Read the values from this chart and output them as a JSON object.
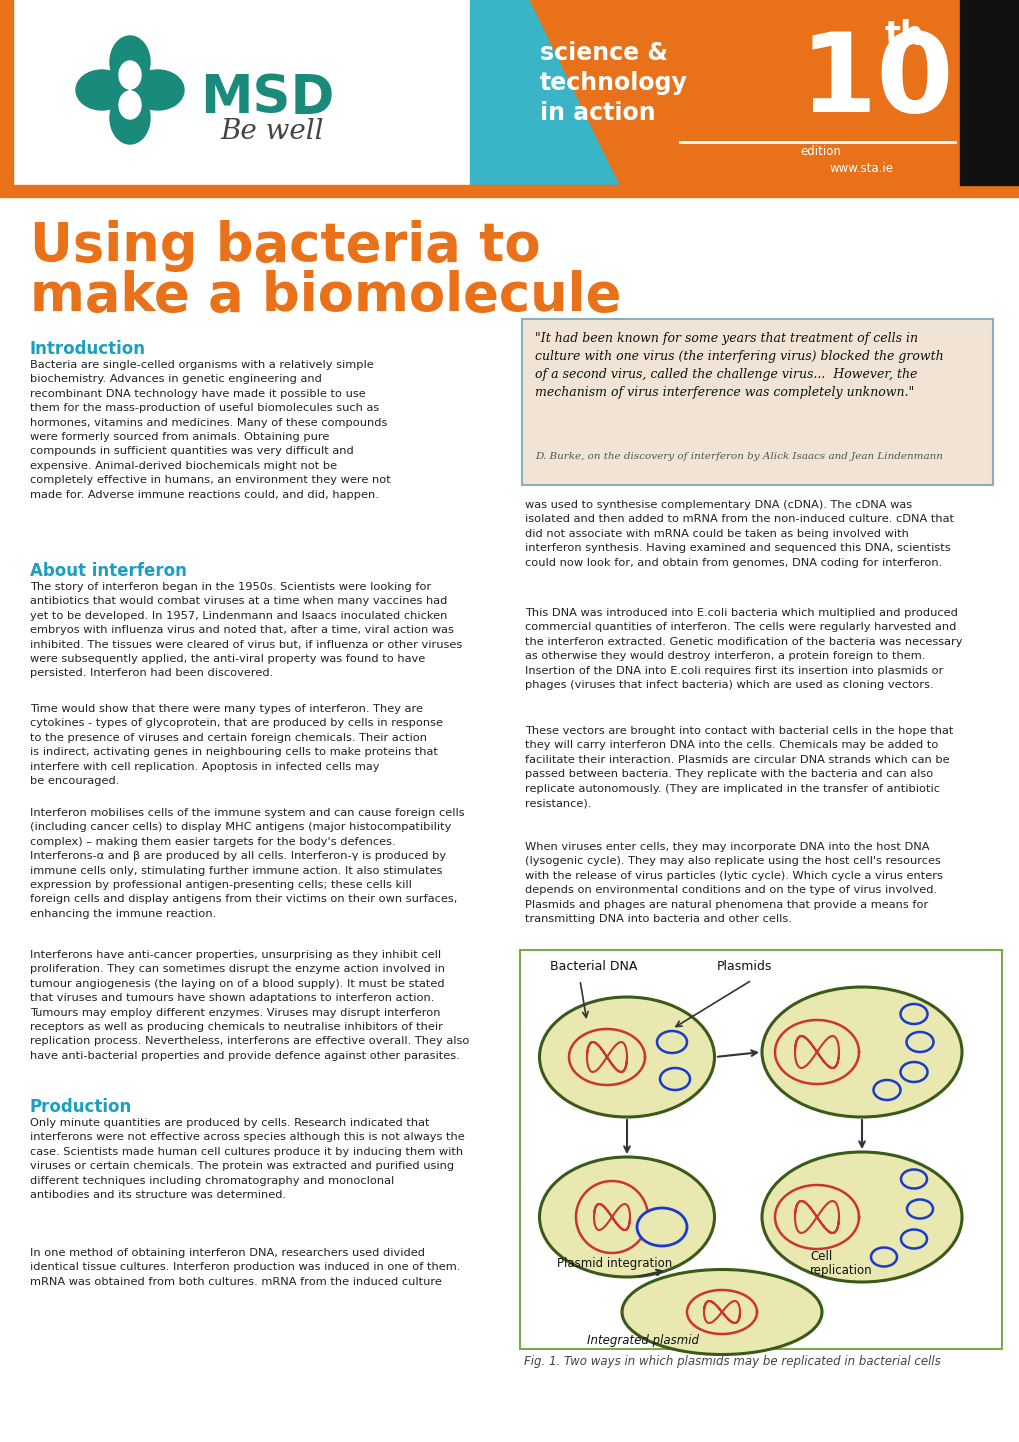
{
  "page_width": 10.2,
  "page_height": 14.42,
  "dpi": 100,
  "orange": "#e8711a",
  "teal": "#1a9fc0",
  "dark": "#111111",
  "white": "#ffffff",
  "body_dark": "#222222",
  "section_teal": "#1a9fc0",
  "title_orange": "#e8711a",
  "quote_bg": "#f2e4d4",
  "quote_border": "#8ab0bc",
  "fig_bg": "#f0f0cc",
  "fig_border": "#3a5a18",
  "cell_fill": "#e8e8b0",
  "cell_border": "#3a5a18",
  "dna_red": "#cc3333",
  "plasmid_blue": "#1a3acc",
  "title_line1": "Using bacteria to",
  "title_line2": "make a biomolecule",
  "intro_heading": "Introduction",
  "about_heading": "About interferon",
  "production_heading": "Production",
  "figure_caption": "Fig. 1. Two ways in which plasmids may be replicated in bacterial cells"
}
